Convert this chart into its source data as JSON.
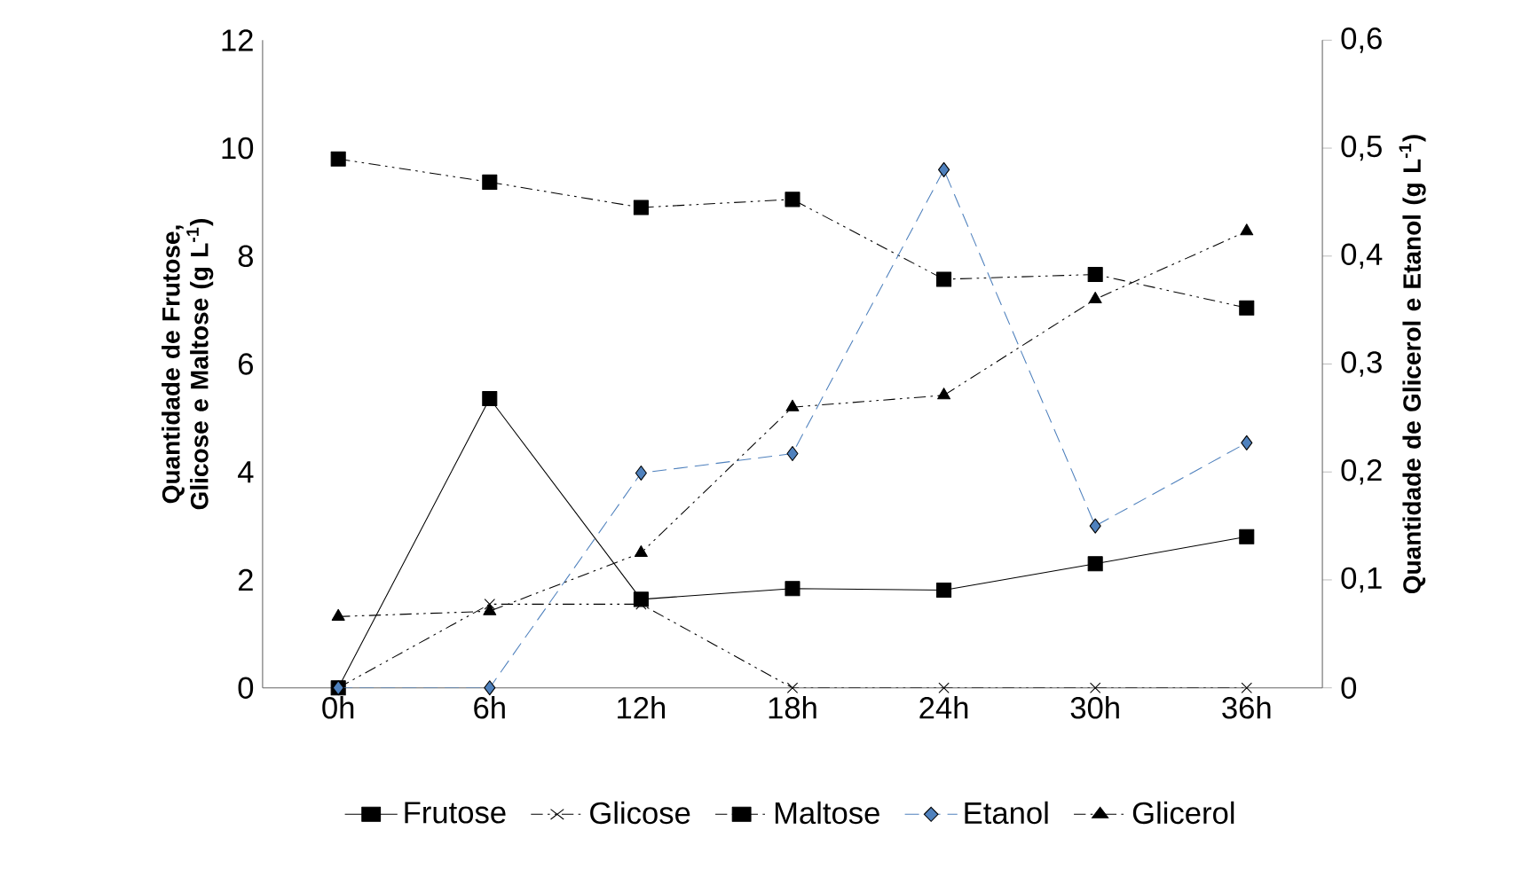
{
  "chart_data": {
    "type": "line",
    "ylabel": "Quantidade de Frutose, Glicose e Maltose (g L$^{-1}$)",
    "y2label": "Quantidade de Glicerol e Etanol (g L$^{-1}$)",
    "categories": [
      "0h",
      "6h",
      "12h",
      "18h",
      "24h",
      "30h",
      "36h"
    ],
    "ylim": [
      0,
      12
    ],
    "yticks": [
      0,
      2,
      4,
      6,
      8,
      10,
      12
    ],
    "y2lim": [
      0,
      0.6
    ],
    "y2ticks": [
      {
        "value": 0,
        "label": "0"
      },
      {
        "value": 0.1,
        "label": "0,1"
      },
      {
        "value": 0.2,
        "label": "0,2"
      },
      {
        "value": 0.3,
        "label": "0,3"
      },
      {
        "value": 0.4,
        "label": "0,4"
      },
      {
        "value": 0.5,
        "label": "0,5"
      },
      {
        "value": 0.6,
        "label": "0,6"
      }
    ],
    "grid": false,
    "legend": "bottom",
    "series": [
      {
        "name": "Frutose",
        "color": "#000000",
        "marker": "square",
        "line_style": "solid",
        "values": [
          0,
          5.36,
          1.64,
          1.84,
          1.81,
          2.3,
          2.8
        ]
      },
      {
        "name": "Glicose",
        "color": "#000000",
        "marker": "cross",
        "line_style": "dotted",
        "values": [
          0,
          1.55,
          1.55,
          0,
          0,
          0,
          0
        ]
      },
      {
        "name": "Maltose",
        "color": "#000000",
        "marker": "square",
        "line_style": "dotted",
        "values": [
          9.8,
          9.37,
          8.9,
          9.05,
          7.57,
          7.66,
          7.04
        ]
      },
      {
        "name": "Etanol",
        "color": "#4f81bd",
        "marker": "diamond",
        "line_style": "dashed",
        "axis": "y2",
        "values": [
          0,
          0,
          0.199,
          0.217,
          0.48,
          0.15,
          0.227
        ]
      },
      {
        "name": "Glicerol",
        "color": "#000000",
        "marker": "triangle",
        "line_style": "dotted",
        "axis": "y2",
        "values": [
          0.066,
          0.071,
          0.125,
          0.26,
          0.271,
          0.36,
          0.423
        ]
      }
    ]
  }
}
